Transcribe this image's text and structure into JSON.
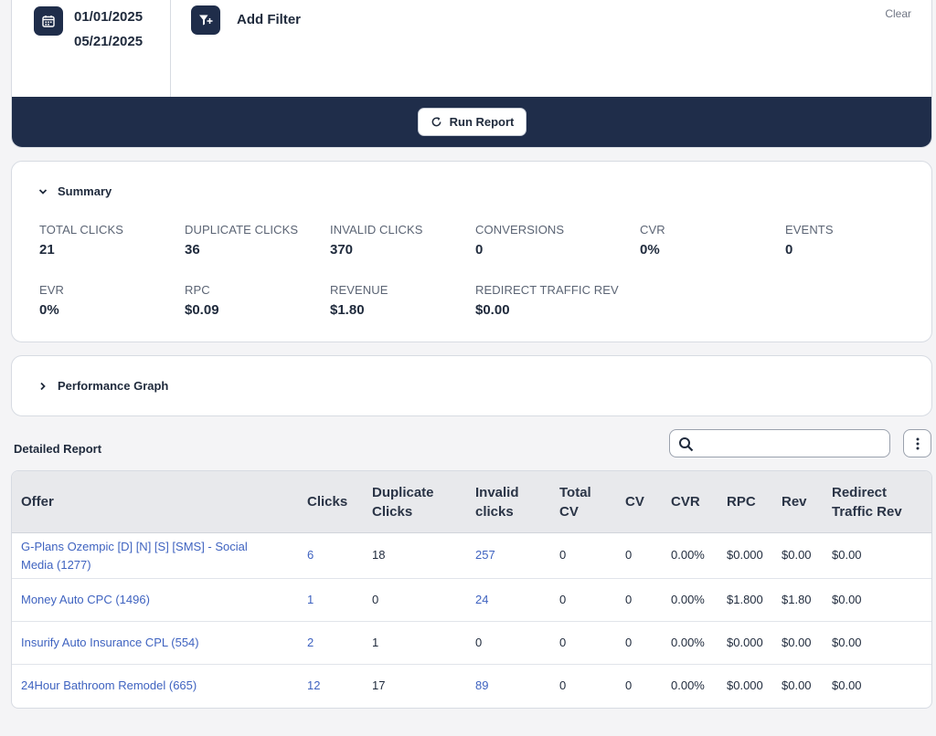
{
  "filter": {
    "start_date": "01/01/2025",
    "end_date": "05/21/2025",
    "add_filter_label": "Add Filter",
    "clear_label": "Clear",
    "run_report_label": "Run Report"
  },
  "summary": {
    "title": "Summary",
    "metrics": [
      {
        "label": "TOTAL CLICKS",
        "value": "21"
      },
      {
        "label": "DUPLICATE CLICKS",
        "value": "36"
      },
      {
        "label": "INVALID CLICKS",
        "value": "370"
      },
      {
        "label": "CONVERSIONS",
        "value": "0"
      },
      {
        "label": "CVR",
        "value": "0%"
      },
      {
        "label": "EVENTS",
        "value": "0"
      },
      {
        "label": "EVR",
        "value": "0%"
      },
      {
        "label": "RPC",
        "value": "$0.09"
      },
      {
        "label": "REVENUE",
        "value": "$1.80"
      },
      {
        "label": "REDIRECT TRAFFIC REV",
        "value": "$0.00"
      }
    ]
  },
  "graph": {
    "title": "Performance Graph"
  },
  "report": {
    "title": "Detailed Report",
    "search_placeholder": "",
    "columns": [
      {
        "line1": "Offer",
        "line2": ""
      },
      {
        "line1": "Clicks",
        "line2": ""
      },
      {
        "line1": "Duplicate",
        "line2": "Clicks"
      },
      {
        "line1": "Invalid",
        "line2": "clicks"
      },
      {
        "line1": "Total",
        "line2": "CV"
      },
      {
        "line1": "CV",
        "line2": ""
      },
      {
        "line1": "CVR",
        "line2": ""
      },
      {
        "line1": "RPC",
        "line2": ""
      },
      {
        "line1": "Rev",
        "line2": ""
      },
      {
        "line1": "Redirect",
        "line2": "Traffic Rev"
      }
    ],
    "rows": [
      {
        "offer_line1": "G-Plans Ozempic [D] [N] [S] [SMS] - Social",
        "offer_line2": "Media (1277)",
        "clicks": "6",
        "duplicate": "18",
        "invalid": "257",
        "total_cv": "0",
        "cv": "0",
        "cvr": "0.00%",
        "rpc": "$0.000",
        "rev": "$0.00",
        "redirect": "$0.00"
      },
      {
        "offer_line1": "Money Auto CPC (1496)",
        "offer_line2": "",
        "clicks": "1",
        "duplicate": "0",
        "invalid": "24",
        "total_cv": "0",
        "cv": "0",
        "cvr": "0.00%",
        "rpc": "$1.800",
        "rev": "$1.80",
        "redirect": "$0.00"
      },
      {
        "offer_line1": "Insurify Auto Insurance CPL (554)",
        "offer_line2": "",
        "clicks": "2",
        "duplicate": "1",
        "invalid": "0",
        "total_cv": "0",
        "cv": "0",
        "cvr": "0.00%",
        "rpc": "$0.000",
        "rev": "$0.00",
        "redirect": "$0.00"
      },
      {
        "offer_line1": "24Hour Bathroom Remodel (665)",
        "offer_line2": "",
        "clicks": "12",
        "duplicate": "17",
        "invalid": "89",
        "total_cv": "0",
        "cv": "0",
        "cvr": "0.00%",
        "rpc": "$0.000",
        "rev": "$0.00",
        "redirect": "$0.00"
      }
    ]
  },
  "colors": {
    "navy": "#1f2d4a",
    "link": "#3f63c0",
    "header_bg": "#e8e9ec"
  },
  "icons": [
    "calendar-icon",
    "filter-add-icon",
    "refresh-icon",
    "chevron-down-icon",
    "chevron-right-icon",
    "search-icon",
    "more-vertical-icon"
  ]
}
